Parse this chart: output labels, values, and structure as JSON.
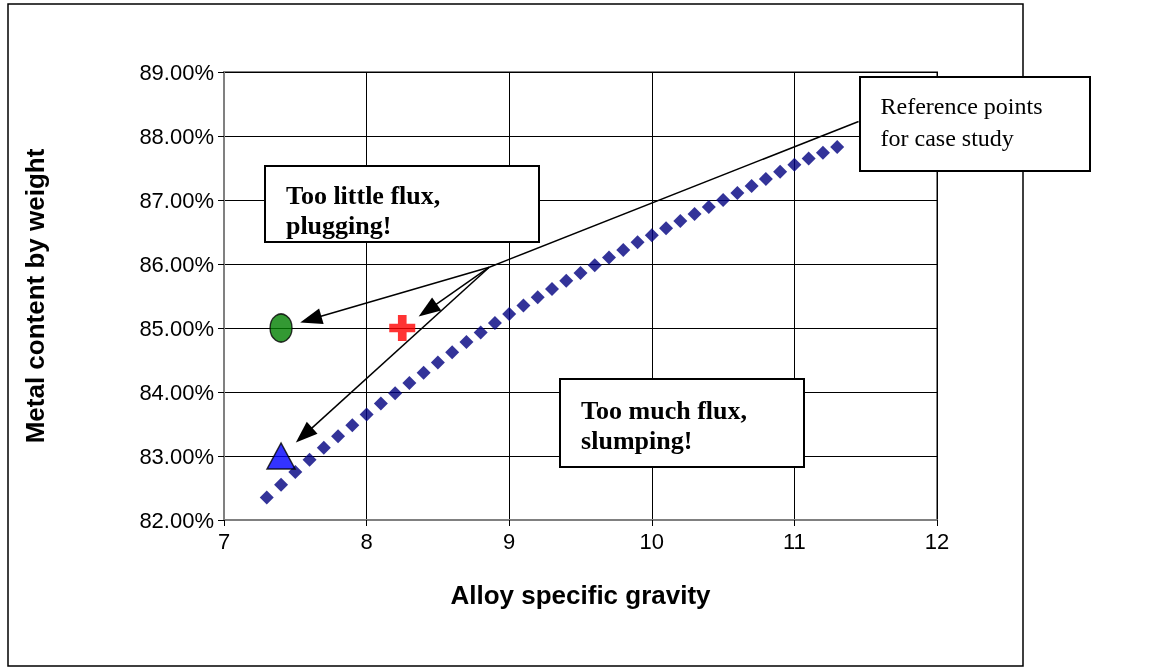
{
  "chart_data": {
    "type": "scatter",
    "xlabel": "Alloy specific gravity",
    "ylabel": "Metal content by weight",
    "xlim": [
      7,
      12
    ],
    "xticks": [
      7,
      8,
      9,
      10,
      11,
      12
    ],
    "ylim": [
      82,
      89
    ],
    "yticks": [
      {
        "value": 82,
        "label": "82.00%"
      },
      {
        "value": 83,
        "label": "83.00%"
      },
      {
        "value": 84,
        "label": "84.00%"
      },
      {
        "value": 85,
        "label": "85.00%"
      },
      {
        "value": 86,
        "label": "86.00%"
      },
      {
        "value": 87,
        "label": "87.00%"
      },
      {
        "value": 88,
        "label": "88.00%"
      },
      {
        "value": 89,
        "label": "89.00%"
      }
    ],
    "grid": true,
    "series": [
      {
        "color": "#000080",
        "marker": "diamond",
        "x": [
          7.3,
          7.4,
          7.5,
          7.6,
          7.7,
          7.8,
          7.9,
          8.0,
          8.1,
          8.2,
          8.3,
          8.4,
          8.5,
          8.6,
          8.7,
          8.8,
          8.9,
          9.0,
          9.1,
          9.2,
          9.3,
          9.4,
          9.5,
          9.6,
          9.7,
          9.8,
          9.9,
          10.0,
          10.1,
          10.2,
          10.3,
          10.4,
          10.5,
          10.6,
          10.7,
          10.8,
          10.9,
          11.0,
          11.1,
          11.2,
          11.3
        ],
        "values": [
          82.35,
          82.55,
          82.75,
          82.94,
          83.13,
          83.31,
          83.48,
          83.65,
          83.82,
          83.98,
          84.14,
          84.3,
          84.46,
          84.62,
          84.78,
          84.93,
          85.08,
          85.22,
          85.35,
          85.48,
          85.61,
          85.74,
          85.86,
          85.98,
          86.1,
          86.22,
          86.34,
          86.45,
          86.56,
          86.67,
          86.78,
          86.89,
          87.0,
          87.11,
          87.22,
          87.33,
          87.44,
          87.55,
          87.65,
          87.74,
          87.83
        ]
      },
      {
        "color": "#008000",
        "marker": "circle",
        "x": [
          7.4
        ],
        "values": [
          85.0
        ]
      },
      {
        "color": "#ff0000",
        "marker": "cross",
        "x": [
          8.25
        ],
        "values": [
          85.0
        ]
      },
      {
        "color": "#0000ff",
        "marker": "triangle",
        "x": [
          7.4
        ],
        "values": [
          83.0
        ]
      }
    ],
    "annotations": [
      "Too little flux, plugging!",
      "Too much flux, slumping!",
      "Reference points for case study"
    ]
  }
}
